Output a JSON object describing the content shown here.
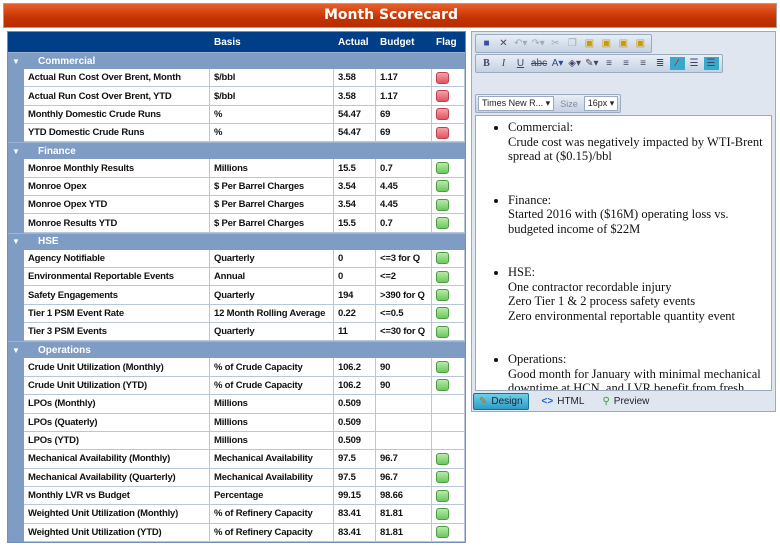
{
  "title": "Month Scorecard",
  "columns": {
    "basis": "Basis",
    "actual": "Actual",
    "budget": "Budget",
    "flag": "Flag"
  },
  "groups": [
    {
      "name": "Commercial",
      "rows": [
        {
          "name": "Actual Run Cost Over Brent, Month",
          "basis": "$/bbl",
          "actual": "3.58",
          "budget": "1.17",
          "flag": "red"
        },
        {
          "name": "Actual Run Cost Over Brent, YTD",
          "basis": "$/bbl",
          "actual": "3.58",
          "budget": "1.17",
          "flag": "red"
        },
        {
          "name": "Monthly Domestic Crude Runs",
          "basis": "%",
          "actual": "54.47",
          "budget": "69",
          "flag": "red"
        },
        {
          "name": "YTD Domestic Crude Runs",
          "basis": "%",
          "actual": "54.47",
          "budget": "69",
          "flag": "red"
        }
      ]
    },
    {
      "name": "Finance",
      "rows": [
        {
          "name": "Monroe Monthly Results",
          "basis": "Millions",
          "actual": "15.5",
          "budget": "0.7",
          "flag": "green"
        },
        {
          "name": "Monroe Opex",
          "basis": "$ Per Barrel Charges",
          "actual": "3.54",
          "budget": "4.45",
          "flag": "green"
        },
        {
          "name": "Monroe Opex YTD",
          "basis": "$ Per Barrel Charges",
          "actual": "3.54",
          "budget": "4.45",
          "flag": "green"
        },
        {
          "name": "Monroe Results YTD",
          "basis": "$ Per Barrel Charges",
          "actual": "15.5",
          "budget": "0.7",
          "flag": "green"
        }
      ]
    },
    {
      "name": "HSE",
      "rows": [
        {
          "name": "Agency Notifiable",
          "basis": "Quarterly",
          "actual": "0",
          "budget": "<=3 for Q",
          "flag": "green"
        },
        {
          "name": "Environmental Reportable Events",
          "basis": "Annual",
          "actual": "0",
          "budget": "<=2",
          "flag": "green"
        },
        {
          "name": "Safety Engagements",
          "basis": "Quarterly",
          "actual": "194",
          "budget": ">390 for Q",
          "flag": "green"
        },
        {
          "name": "Tier 1 PSM Event Rate",
          "basis": "12 Month Rolling Average",
          "actual": "0.22",
          "budget": "<=0.5",
          "flag": "green"
        },
        {
          "name": "Tier 3 PSM Events",
          "basis": "Quarterly",
          "actual": "11",
          "budget": "<=30 for Q",
          "flag": "green"
        }
      ]
    },
    {
      "name": "Operations",
      "rows": [
        {
          "name": "Crude Unit Utilization (Monthly)",
          "basis": "% of Crude Capacity",
          "actual": "106.2",
          "budget": "90",
          "flag": "green"
        },
        {
          "name": "Crude Unit Utilization (YTD)",
          "basis": "% of Crude Capacity",
          "actual": "106.2",
          "budget": "90",
          "flag": "green"
        },
        {
          "name": "LPOs (Monthly)",
          "basis": "Millions",
          "actual": "0.509",
          "budget": "",
          "flag": ""
        },
        {
          "name": "LPOs (Quaterly)",
          "basis": "Millions",
          "actual": "0.509",
          "budget": "",
          "flag": ""
        },
        {
          "name": "LPOs (YTD)",
          "basis": "Millions",
          "actual": "0.509",
          "budget": "",
          "flag": ""
        },
        {
          "name": "Mechanical Availability (Monthly)",
          "basis": "Mechanical Availability",
          "actual": "97.5",
          "budget": "96.7",
          "flag": "green"
        },
        {
          "name": "Mechanical Availability (Quarterly)",
          "basis": "Mechanical Availability",
          "actual": "97.5",
          "budget": "96.7",
          "flag": "green"
        },
        {
          "name": "Monthly LVR vs Budget",
          "basis": "Percentage",
          "actual": "99.15",
          "budget": "98.66",
          "flag": "green"
        },
        {
          "name": "Weighted Unit Utilization (Monthly)",
          "basis": "% of Refinery Capacity",
          "actual": "83.41",
          "budget": "81.81",
          "flag": "green"
        },
        {
          "name": "Weighted Unit Utilization (YTD)",
          "basis": "% of Refinery Capacity",
          "actual": "83.41",
          "budget": "81.81",
          "flag": "green"
        }
      ]
    }
  ],
  "editor": {
    "font": "Times New R...",
    "size_label": "Size",
    "size": "16px",
    "notes": [
      {
        "head": "Commercial:",
        "body": [
          "Crude cost was negatively impacted by WTI-Brent spread at ($0.15)/bbl"
        ]
      },
      {
        "head": "Finance:",
        "body": [
          "Started 2016 with ($16M) operating loss vs. budgeted income of $22M"
        ]
      },
      {
        "head": "HSE:",
        "body": [
          "One contractor recordable injury",
          "Zero Tier 1 & 2 process safety events",
          "Zero environmental reportable quantity event"
        ]
      },
      {
        "head": "Operations:",
        "body": [
          "Good month for January with minimal mechanical downtime at HCN, and LVR benefit from fresh reformer catalyst"
        ]
      }
    ],
    "tabs": [
      "Design",
      "HTML",
      "Preview"
    ],
    "active_tab": "Design"
  },
  "colors": {
    "header": "#003f87",
    "title_bar": "#c63300",
    "group": "#7f9cc4",
    "flag_red": "#e05560",
    "flag_green": "#6cc860"
  }
}
